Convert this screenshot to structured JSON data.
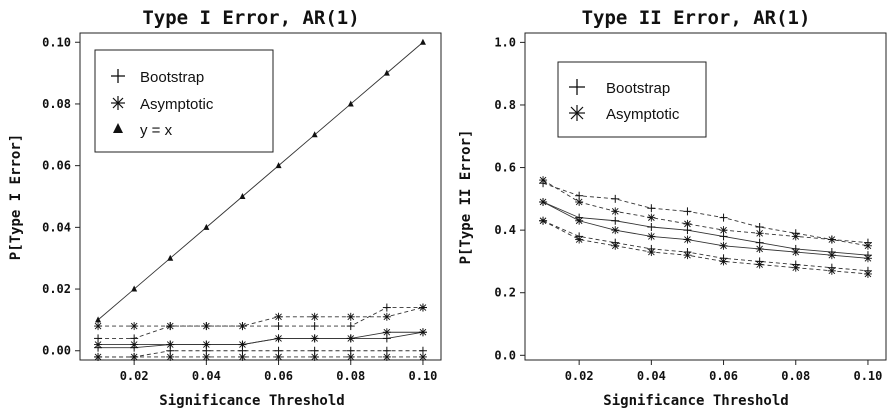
{
  "chart_data": [
    {
      "type": "line",
      "title": "Type I Error, AR(1)",
      "xlabel": "Significance Threshold",
      "ylabel": "P[Type I Error]",
      "xlim": [
        0.005,
        0.105
      ],
      "ylim": [
        -0.003,
        0.103
      ],
      "x_ticks": [
        "0.02",
        "0.04",
        "0.06",
        "0.08",
        "0.10"
      ],
      "y_ticks": [
        "0.00",
        "0.02",
        "0.04",
        "0.06",
        "0.08",
        "0.10"
      ],
      "grid": false,
      "legend_position": "top-left",
      "legend": [
        "Bootstrap",
        "Asymptotic",
        "y = x"
      ],
      "x": [
        0.01,
        0.02,
        0.03,
        0.04,
        0.05,
        0.06,
        0.07,
        0.08,
        0.09,
        0.1
      ],
      "series": [
        {
          "name": "y = x",
          "marker": "triangle",
          "line": "solid",
          "values": [
            0.01,
            0.02,
            0.03,
            0.04,
            0.05,
            0.06,
            0.07,
            0.08,
            0.09,
            0.1
          ]
        },
        {
          "name": "Bootstrap",
          "marker": "plus",
          "line": "solid",
          "values": [
            0.001,
            0.001,
            0.002,
            0.002,
            0.002,
            0.004,
            0.004,
            0.004,
            0.004,
            0.006
          ]
        },
        {
          "name": "Bootstrap",
          "marker": "plus",
          "line": "dashed",
          "values": [
            0.004,
            0.004,
            0.008,
            0.008,
            0.008,
            0.008,
            0.008,
            0.008,
            0.014,
            0.014
          ]
        },
        {
          "name": "Bootstrap",
          "marker": "plus",
          "line": "dashed",
          "values": [
            -0.002,
            -0.002,
            0.0,
            0.0,
            0.0,
            0.0,
            0.0,
            0.0,
            0.0,
            0.0
          ]
        },
        {
          "name": "Asymptotic",
          "marker": "asterisk",
          "line": "solid",
          "values": [
            0.002,
            0.002,
            0.002,
            0.002,
            0.002,
            0.004,
            0.004,
            0.004,
            0.006,
            0.006
          ]
        },
        {
          "name": "Asymptotic",
          "marker": "asterisk",
          "line": "dashed",
          "values": [
            0.008,
            0.008,
            0.008,
            0.008,
            0.008,
            0.011,
            0.011,
            0.011,
            0.011,
            0.014
          ]
        },
        {
          "name": "Asymptotic",
          "marker": "asterisk",
          "line": "dashed",
          "values": [
            -0.002,
            -0.002,
            -0.002,
            -0.002,
            -0.002,
            -0.002,
            -0.002,
            -0.002,
            -0.002,
            -0.002
          ]
        }
      ]
    },
    {
      "type": "line",
      "title": "Type II Error, AR(1)",
      "xlabel": "Significance Threshold",
      "ylabel": "P[Type II Error]",
      "xlim": [
        0.005,
        0.105
      ],
      "ylim": [
        -0.015,
        1.03
      ],
      "x_ticks": [
        "0.02",
        "0.04",
        "0.06",
        "0.08",
        "0.10"
      ],
      "y_ticks": [
        "0.0",
        "0.2",
        "0.4",
        "0.6",
        "0.8",
        "1.0"
      ],
      "grid": false,
      "legend_position": "top-left",
      "legend": [
        "Bootstrap",
        "Asymptotic"
      ],
      "x": [
        0.01,
        0.02,
        0.03,
        0.04,
        0.05,
        0.06,
        0.07,
        0.08,
        0.09,
        0.1
      ],
      "series": [
        {
          "name": "Bootstrap",
          "marker": "plus",
          "line": "solid",
          "values": [
            0.49,
            0.44,
            0.43,
            0.41,
            0.4,
            0.38,
            0.36,
            0.34,
            0.33,
            0.32
          ]
        },
        {
          "name": "Bootstrap",
          "marker": "plus",
          "line": "dashed",
          "values": [
            0.55,
            0.51,
            0.5,
            0.47,
            0.46,
            0.44,
            0.41,
            0.39,
            0.37,
            0.36
          ]
        },
        {
          "name": "Bootstrap",
          "marker": "plus",
          "line": "dashed",
          "values": [
            0.43,
            0.38,
            0.36,
            0.34,
            0.33,
            0.31,
            0.3,
            0.29,
            0.28,
            0.27
          ]
        },
        {
          "name": "Asymptotic",
          "marker": "asterisk",
          "line": "solid",
          "values": [
            0.49,
            0.43,
            0.4,
            0.38,
            0.37,
            0.35,
            0.34,
            0.33,
            0.32,
            0.31
          ]
        },
        {
          "name": "Asymptotic",
          "marker": "asterisk",
          "line": "dashed",
          "values": [
            0.56,
            0.49,
            0.46,
            0.44,
            0.42,
            0.4,
            0.39,
            0.38,
            0.37,
            0.35
          ]
        },
        {
          "name": "Asymptotic",
          "marker": "asterisk",
          "line": "dashed",
          "values": [
            0.43,
            0.37,
            0.35,
            0.33,
            0.32,
            0.3,
            0.29,
            0.28,
            0.27,
            0.26
          ]
        }
      ]
    }
  ]
}
